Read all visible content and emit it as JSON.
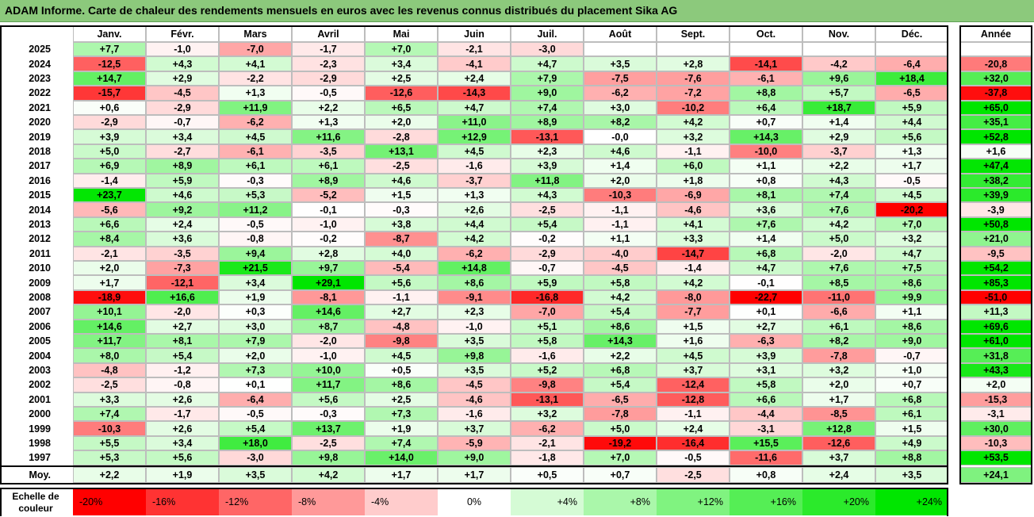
{
  "title": "ADAM Informe. Carte de chaleur des rendements mensuels en euros avec les revenus connus distribués du placement Sika AG",
  "months": [
    "Janv.",
    "Févr.",
    "Mars",
    "Avril",
    "Mai",
    "Juin",
    "Juil.",
    "Août",
    "Sept.",
    "Oct.",
    "Nov.",
    "Déc."
  ],
  "annual_header": "Année",
  "avg_label": "Moy.",
  "scale_label": "Echelle de couleur",
  "chart_data": {
    "type": "heatmap",
    "rows": [
      {
        "year": "2025",
        "months": [
          "+7,7",
          "-1,0",
          "-7,0",
          "-1,7",
          "+7,0",
          "-2,1",
          "-3,0",
          "",
          "",
          "",
          "",
          ""
        ],
        "annual": ""
      },
      {
        "year": "2024",
        "months": [
          "-12,5",
          "+4,3",
          "+4,1",
          "-2,3",
          "+3,4",
          "-4,1",
          "+4,7",
          "+3,5",
          "+2,8",
          "-14,1",
          "-4,2",
          "-6,4"
        ],
        "annual": "-20,8"
      },
      {
        "year": "2023",
        "months": [
          "+14,7",
          "+2,9",
          "-2,2",
          "-2,9",
          "+2,5",
          "+2,4",
          "+7,9",
          "-7,5",
          "-7,6",
          "-6,1",
          "+9,6",
          "+18,4"
        ],
        "annual": "+32,0"
      },
      {
        "year": "2022",
        "months": [
          "-15,7",
          "-4,5",
          "+1,3",
          "-0,5",
          "-12,6",
          "-14,3",
          "+9,0",
          "-6,2",
          "-7,2",
          "+8,8",
          "+5,7",
          "-6,5"
        ],
        "annual": "-37,8"
      },
      {
        "year": "2021",
        "months": [
          "+0,6",
          "-2,9",
          "+11,9",
          "+2,2",
          "+6,5",
          "+4,7",
          "+7,4",
          "+3,0",
          "-10,2",
          "+6,4",
          "+18,7",
          "+5,9"
        ],
        "annual": "+65,0"
      },
      {
        "year": "2020",
        "months": [
          "-2,9",
          "-0,7",
          "-6,2",
          "+1,3",
          "+2,0",
          "+11,0",
          "+8,9",
          "+8,2",
          "+4,2",
          "+0,7",
          "+1,4",
          "+4,4"
        ],
        "annual": "+35,1"
      },
      {
        "year": "2019",
        "months": [
          "+3,9",
          "+3,4",
          "+4,5",
          "+11,6",
          "-2,8",
          "+12,9",
          "-13,1",
          "-0,0",
          "+3,2",
          "+14,3",
          "+2,9",
          "+5,6"
        ],
        "annual": "+52,8"
      },
      {
        "year": "2018",
        "months": [
          "+5,0",
          "-2,7",
          "-6,1",
          "-3,5",
          "+13,1",
          "+4,5",
          "+2,3",
          "+4,6",
          "-1,1",
          "-10,0",
          "-3,7",
          "+1,3"
        ],
        "annual": "+1,6"
      },
      {
        "year": "2017",
        "months": [
          "+6,9",
          "+8,9",
          "+6,1",
          "+6,1",
          "-2,5",
          "-1,6",
          "+3,9",
          "+1,4",
          "+6,0",
          "+1,1",
          "+2,2",
          "+1,7"
        ],
        "annual": "+47,4"
      },
      {
        "year": "2016",
        "months": [
          "-1,4",
          "+5,9",
          "-0,3",
          "+8,9",
          "+4,6",
          "-3,7",
          "+11,8",
          "+2,0",
          "+1,8",
          "+0,8",
          "+4,3",
          "-0,5"
        ],
        "annual": "+38,2"
      },
      {
        "year": "2015",
        "months": [
          "+23,7",
          "+4,6",
          "+5,3",
          "-5,2",
          "+1,5",
          "+1,3",
          "+4,3",
          "-10,3",
          "-6,9",
          "+8,1",
          "+7,4",
          "+4,5"
        ],
        "annual": "+39,9"
      },
      {
        "year": "2014",
        "months": [
          "-5,6",
          "+9,2",
          "+11,2",
          "-0,1",
          "-0,3",
          "+2,6",
          "-2,5",
          "-1,1",
          "-4,6",
          "+3,6",
          "+7,6",
          "-20,2"
        ],
        "annual": "-3,9"
      },
      {
        "year": "2013",
        "months": [
          "+6,6",
          "+2,4",
          "-0,5",
          "-1,0",
          "+3,8",
          "+4,4",
          "+5,4",
          "-1,1",
          "+4,1",
          "+7,6",
          "+4,2",
          "+7,0"
        ],
        "annual": "+50,8"
      },
      {
        "year": "2012",
        "months": [
          "+8,4",
          "+3,6",
          "-0,8",
          "-0,2",
          "-8,7",
          "+4,2",
          "-0,2",
          "+1,1",
          "+3,3",
          "+1,4",
          "+5,0",
          "+3,2"
        ],
        "annual": "+21,0"
      },
      {
        "year": "2011",
        "months": [
          "-2,1",
          "-3,5",
          "+9,4",
          "+2,8",
          "+4,0",
          "-6,2",
          "-2,9",
          "-4,0",
          "-14,7",
          "+6,8",
          "-2,0",
          "+4,7"
        ],
        "annual": "-9,5"
      },
      {
        "year": "2010",
        "months": [
          "+2,0",
          "-7,3",
          "+21,5",
          "+9,7",
          "-5,4",
          "+14,8",
          "-0,7",
          "-4,5",
          "-1,4",
          "+4,7",
          "+7,6",
          "+7,5"
        ],
        "annual": "+54,2"
      },
      {
        "year": "2009",
        "months": [
          "+1,7",
          "-12,1",
          "+3,4",
          "+29,1",
          "+5,6",
          "+8,6",
          "+5,9",
          "+5,8",
          "+4,2",
          "-0,1",
          "+8,5",
          "+8,6"
        ],
        "annual": "+85,3"
      },
      {
        "year": "2008",
        "months": [
          "-18,9",
          "+16,6",
          "+1,9",
          "-8,1",
          "-1,1",
          "-9,1",
          "-16,8",
          "+4,2",
          "-8,0",
          "-22,7",
          "-11,0",
          "+9,9"
        ],
        "annual": "-51,0"
      },
      {
        "year": "2007",
        "months": [
          "+10,1",
          "-2,0",
          "+0,3",
          "+14,6",
          "+2,7",
          "+2,3",
          "-7,0",
          "+5,4",
          "-7,7",
          "+0,1",
          "-6,6",
          "+1,1"
        ],
        "annual": "+11,3"
      },
      {
        "year": "2006",
        "months": [
          "+14,6",
          "+2,7",
          "+3,0",
          "+8,7",
          "-4,8",
          "-1,0",
          "+5,1",
          "+8,6",
          "+1,5",
          "+2,7",
          "+6,1",
          "+8,6"
        ],
        "annual": "+69,6"
      },
      {
        "year": "2005",
        "months": [
          "+11,7",
          "+8,1",
          "+7,9",
          "-2,0",
          "-9,8",
          "+3,5",
          "+5,8",
          "+14,3",
          "+1,6",
          "-6,3",
          "+8,2",
          "+9,0"
        ],
        "annual": "+61,0"
      },
      {
        "year": "2004",
        "months": [
          "+8,0",
          "+5,4",
          "+2,0",
          "-1,0",
          "+4,5",
          "+9,8",
          "-1,6",
          "+2,2",
          "+4,5",
          "+3,9",
          "-7,8",
          "-0,7"
        ],
        "annual": "+31,8"
      },
      {
        "year": "2003",
        "months": [
          "-4,8",
          "-1,2",
          "+7,3",
          "+10,0",
          "+0,5",
          "+3,5",
          "+5,2",
          "+6,8",
          "+3,7",
          "+3,1",
          "+3,2",
          "+1,0"
        ],
        "annual": "+43,3"
      },
      {
        "year": "2002",
        "months": [
          "-2,5",
          "-0,8",
          "+0,1",
          "+11,7",
          "+8,6",
          "-4,5",
          "-9,8",
          "+5,4",
          "-12,4",
          "+5,8",
          "+2,0",
          "+0,7"
        ],
        "annual": "+2,0"
      },
      {
        "year": "2001",
        "months": [
          "+3,3",
          "+2,6",
          "-6,4",
          "+5,6",
          "+2,5",
          "-4,6",
          "-13,1",
          "-6,5",
          "-12,8",
          "+6,6",
          "+1,7",
          "+6,8"
        ],
        "annual": "-15,3"
      },
      {
        "year": "2000",
        "months": [
          "+7,4",
          "-1,7",
          "-0,5",
          "-0,3",
          "+7,3",
          "-1,6",
          "+3,2",
          "-7,8",
          "-1,1",
          "-4,4",
          "-8,5",
          "+6,1"
        ],
        "annual": "-3,1"
      },
      {
        "year": "1999",
        "months": [
          "-10,3",
          "+2,6",
          "+5,4",
          "+13,7",
          "+1,9",
          "+3,7",
          "-6,2",
          "+5,0",
          "+2,4",
          "-3,1",
          "+12,8",
          "+1,5"
        ],
        "annual": "+30,0"
      },
      {
        "year": "1998",
        "months": [
          "+5,5",
          "+3,4",
          "+18,0",
          "-2,5",
          "+7,4",
          "-5,9",
          "-2,1",
          "-19,2",
          "-16,4",
          "+15,5",
          "-12,6",
          "+4,9"
        ],
        "annual": "-10,3"
      },
      {
        "year": "1997",
        "months": [
          "+5,3",
          "+5,6",
          "-3,0",
          "+9,8",
          "+14,0",
          "+9,0",
          "-1,8",
          "+7,0",
          "-0,5",
          "-11,6",
          "+3,7",
          "+8,8"
        ],
        "annual": "+53,5"
      }
    ],
    "average": {
      "months": [
        "+2,2",
        "+1,9",
        "+3,5",
        "+4,2",
        "+1,7",
        "+1,7",
        "+0,5",
        "+0,7",
        "-2,5",
        "+0,8",
        "+2,4",
        "+3,5"
      ],
      "annual": "+24,1"
    },
    "scale": [
      "-20%",
      "-16%",
      "-12%",
      "-8%",
      "-4%",
      "0%",
      "+4%",
      "+8%",
      "+12%",
      "+16%",
      "+20%",
      "+24%"
    ],
    "scale_values": [
      -20,
      -16,
      -12,
      -8,
      -4,
      0,
      4,
      8,
      12,
      16,
      20,
      24
    ],
    "colors": {
      "negative": "#ff0000",
      "neutral": "#ffffff",
      "positive": "#00e600",
      "title_bg": "#8cc97c"
    }
  }
}
